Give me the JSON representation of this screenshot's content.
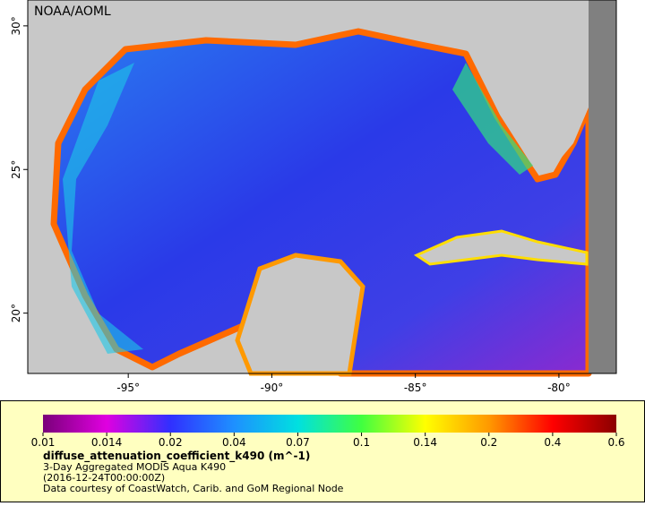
{
  "map": {
    "credit": "NOAA/AOML",
    "lonlim": [
      -98.5,
      -78
    ],
    "latlim": [
      17.9,
      30.9
    ],
    "lon_ticks": [
      {
        "value": -95,
        "label": "-95°"
      },
      {
        "value": -90,
        "label": "-90°"
      },
      {
        "value": -85,
        "label": "-85°"
      },
      {
        "value": -80,
        "label": "-80°"
      }
    ],
    "lat_ticks": [
      {
        "value": 20,
        "label": "20°"
      },
      {
        "value": 25,
        "label": "25°"
      },
      {
        "value": 30,
        "label": "30°"
      }
    ]
  },
  "colorbar": {
    "ticks": [
      0.01,
      0.014,
      0.02,
      0.04,
      0.07,
      0.1,
      0.14,
      0.2,
      0.4,
      0.6
    ],
    "colors": [
      "#7a007a",
      "#e000e0",
      "#3030ff",
      "#1e90ff",
      "#00e0e0",
      "#40ff40",
      "#ffff00",
      "#ff9900",
      "#ff0000",
      "#8b0000"
    ]
  },
  "legend": {
    "variable": "diffuse_attenuation_coefficient_k490 (m^-1)",
    "dataset": "3-Day Aggregated MODIS Aqua K490",
    "time": "(2016-12-24T00:00:00Z)",
    "credit": "Data courtesy of CoastWatch, Carib. and GoM Regional Node"
  }
}
